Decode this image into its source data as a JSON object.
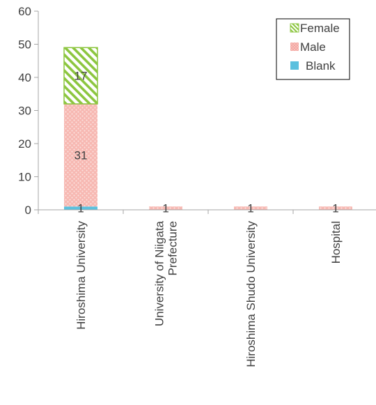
{
  "chart_data": {
    "type": "bar",
    "stacked": true,
    "categories": [
      [
        "Hiroshima University"
      ],
      [
        "University of Niigata",
        "Prefecture"
      ],
      [
        "Hiroshima Shudo University"
      ],
      [
        "Hospital"
      ]
    ],
    "series": [
      {
        "name": "Blank",
        "values": [
          1,
          0,
          0,
          0
        ],
        "color": "#5bc0de",
        "pattern": "solid"
      },
      {
        "name": "Male",
        "values": [
          31,
          1,
          1,
          1
        ],
        "color": "#f4a6a0",
        "pattern": "dots"
      },
      {
        "name": "Female",
        "values": [
          17,
          0,
          0,
          0
        ],
        "color": "#8cc63f",
        "pattern": "diagonal-hatch"
      }
    ],
    "data_labels": [
      {
        "text": "1",
        "category": 0,
        "series": "Blank"
      },
      {
        "text": "31",
        "category": 0,
        "series": "Male"
      },
      {
        "text": "17",
        "category": 0,
        "series": "Female"
      },
      {
        "text": "1",
        "category": 1,
        "series": "Male"
      },
      {
        "text": "1",
        "category": 2,
        "series": "Male"
      },
      {
        "text": "1",
        "category": 3,
        "series": "Male"
      }
    ],
    "ylim": [
      0,
      60
    ],
    "yticks": [
      "0",
      "10",
      "20",
      "30",
      "40",
      "50",
      "60"
    ],
    "legend": {
      "position": "top-right",
      "order": [
        "Female",
        "Male",
        "Blank"
      ]
    },
    "grid": false,
    "title": "",
    "xlabel": "",
    "ylabel": ""
  }
}
